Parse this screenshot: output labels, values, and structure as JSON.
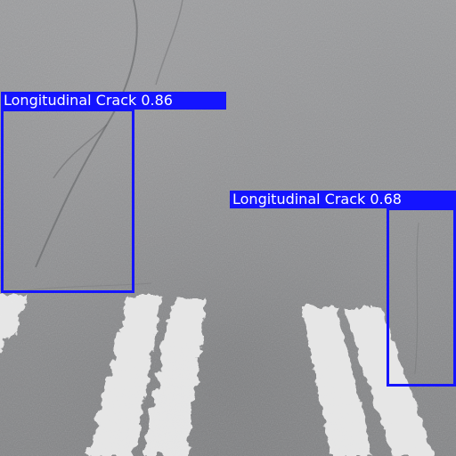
{
  "detections": [
    {
      "label": "Longitudinal Crack 0.86",
      "class": "Longitudinal Crack",
      "confidence": 0.86
    },
    {
      "label": "Longitudinal Crack 0.68",
      "class": "Longitudinal Crack",
      "confidence": 0.68
    }
  ],
  "colors": {
    "box": "#1414ff",
    "label_text": "#ffffff",
    "asphalt": "#8d8e90",
    "road_marking": "#eeeeee"
  }
}
